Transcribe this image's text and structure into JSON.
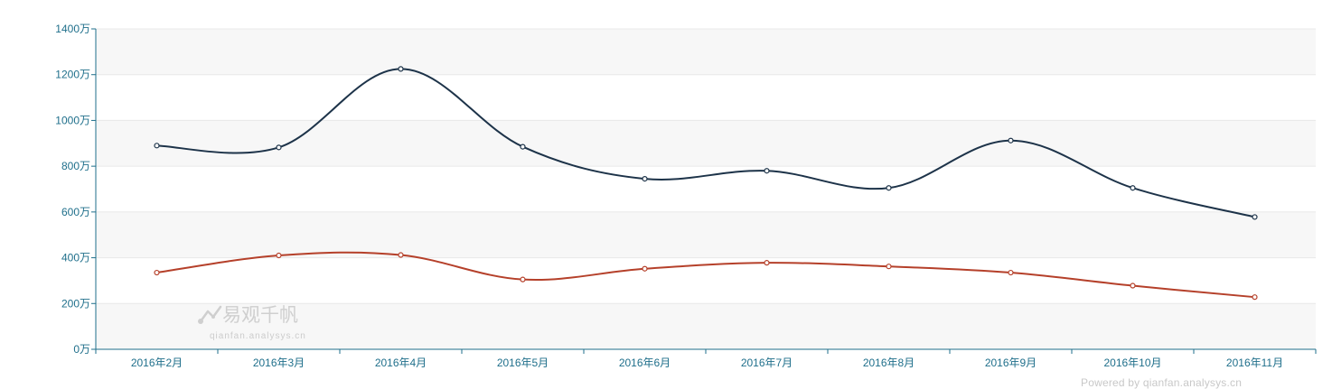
{
  "chart_data": {
    "type": "line",
    "categories": [
      "2016年2月",
      "2016年3月",
      "2016年4月",
      "2016年5月",
      "2016年6月",
      "2016年7月",
      "2016年8月",
      "2016年9月",
      "2016年10月",
      "2016年11月"
    ],
    "series": [
      {
        "values": [
          890,
          882,
          1225,
          885,
          745,
          780,
          705,
          912,
          705,
          578
        ],
        "color": "#1d3349"
      },
      {
        "values": [
          335,
          410,
          412,
          305,
          352,
          378,
          362,
          335,
          278,
          228
        ],
        "color": "#b5402a"
      }
    ],
    "yticks": [
      "0万",
      "200万",
      "400万",
      "600万",
      "800万",
      "1000万",
      "1200万",
      "1400万"
    ],
    "ylim": [
      0,
      1400
    ],
    "ylabel": "",
    "xlabel": "",
    "grid": "banded"
  },
  "watermark": {
    "brand": "易观千帆",
    "domain": "qianfan.analysys.cn",
    "icon": "analysys-logo-icon"
  },
  "footer": {
    "powered_by": "Powered by qianfan.analysys.cn"
  }
}
